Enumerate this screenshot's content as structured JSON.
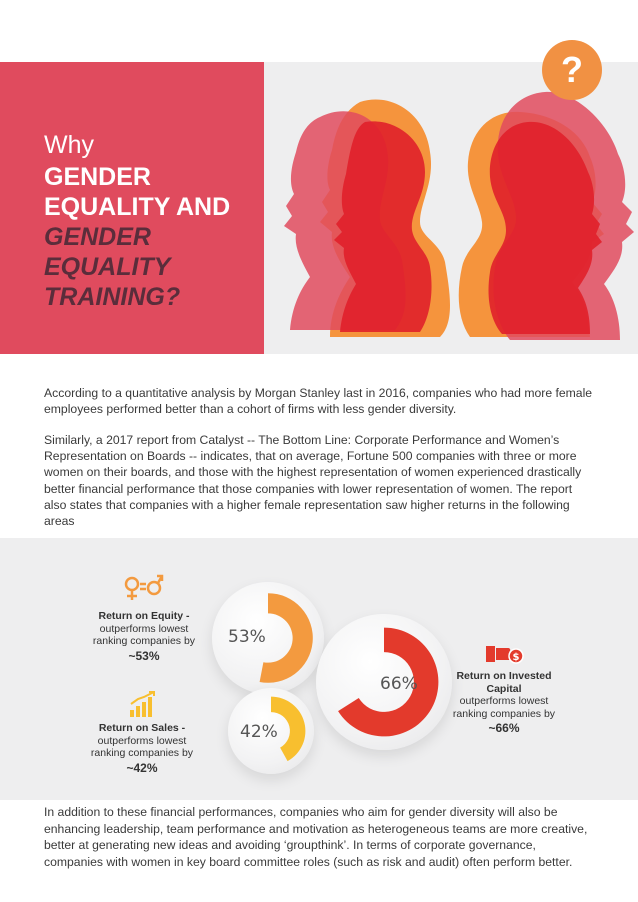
{
  "header": {
    "why": "Why",
    "line1": "GENDER",
    "line2": "EQUALITY AND",
    "line3": "GENDER",
    "line4": "EQUALITY",
    "line5": "TRAINING?",
    "badge": "?"
  },
  "paragraphs": {
    "p1": "According to a quantitative analysis by Morgan Stanley last in 2016, companies who had more female employees performed better than a cohort of firms with less gender diversity.",
    "p2": "Similarly, a 2017 report from Catalyst -- The Bottom Line: Corporate Performance and Women’s Representation on Boards -- indicates, that on average, Fortune 500 companies with three or more women on their boards, and those with the highest representation of women experienced drastically better financial performance that those companies with lower representation of women. The report also states that companies with a higher female representation saw higher returns in the following areas",
    "p3": "In addition to these financial performances, companies who aim for gender diversity will also be enhancing leadership, team performance and motivation as heterogeneous teams are more creative, better at generating new ideas and avoiding ‘groupthink’. In terms of corporate governance, companies with women in key board committee roles (such as risk and audit) often perform better."
  },
  "stats": {
    "equity": {
      "title": "Return on Equity -",
      "line1": "outperforms lowest",
      "line2": "ranking companies by",
      "value": "~53%",
      "pct_label": "53%",
      "fraction": 0.53,
      "color": "#f39a3f",
      "icon": "gender-equality-icon"
    },
    "sales": {
      "title": "Return on Sales  -",
      "line1": "outperforms lowest",
      "line2": "ranking companies by",
      "value": "~42%",
      "pct_label": "42%",
      "fraction": 0.42,
      "color": "#f8bf2f",
      "icon": "rising-bars-icon"
    },
    "capital": {
      "title1": "Return on Invested",
      "title2": "Capital",
      "line1": "outperforms lowest",
      "line2": "ranking companies by",
      "value": "~66%",
      "pct_label": "66%",
      "fraction": 0.66,
      "color": "#e33a2c",
      "icon": "money-hand-icon"
    }
  }
}
